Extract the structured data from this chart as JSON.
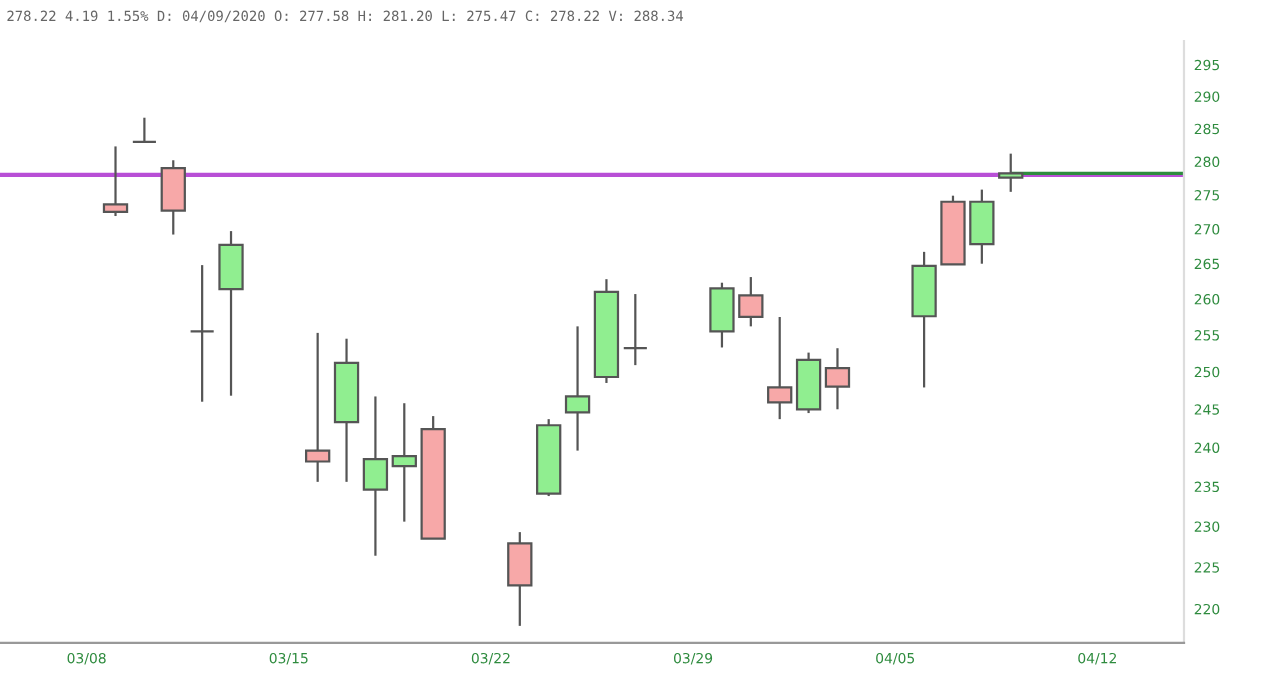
{
  "chart_data": {
    "type": "candlestick",
    "title": "278.22 4.19 1.55% D: 04/09/2020 O: 277.58 H: 281.20 L: 275.47 C: 278.22 V: 288.34",
    "x": [
      "2020-03-09",
      "2020-03-10",
      "2020-03-11",
      "2020-03-12",
      "2020-03-13",
      "2020-03-16",
      "2020-03-17",
      "2020-03-18",
      "2020-03-19",
      "2020-03-20",
      "2020-03-23",
      "2020-03-24",
      "2020-03-25",
      "2020-03-26",
      "2020-03-27",
      "2020-03-30",
      "2020-03-31",
      "2020-04-01",
      "2020-04-02",
      "2020-04-03",
      "2020-04-06",
      "2020-04-07",
      "2020-04-08",
      "2020-04-09"
    ],
    "ohlc": [
      [
        273.6,
        282.3,
        271.9,
        272.5
      ],
      [
        283.0,
        286.7,
        283.0,
        283.0
      ],
      [
        279.0,
        280.2,
        269.2,
        272.7
      ],
      [
        255.5,
        264.8,
        246.0,
        255.5
      ],
      [
        261.4,
        269.7,
        246.8,
        267.7
      ],
      [
        239.6,
        255.3,
        235.6,
        238.2
      ],
      [
        243.3,
        254.5,
        235.6,
        251.2
      ],
      [
        234.6,
        246.7,
        226.4,
        238.5
      ],
      [
        237.6,
        245.8,
        230.6,
        238.9
      ],
      [
        242.4,
        244.1,
        228.5,
        228.5
      ],
      [
        227.9,
        229.3,
        218.0,
        222.8
      ],
      [
        234.1,
        243.7,
        233.8,
        242.9
      ],
      [
        244.6,
        256.2,
        239.6,
        246.7
      ],
      [
        249.3,
        262.8,
        248.5,
        261.0
      ],
      [
        253.2,
        260.7,
        250.9,
        253.2
      ],
      [
        255.5,
        262.3,
        253.3,
        261.5
      ],
      [
        260.5,
        263.1,
        256.2,
        257.5
      ],
      [
        247.9,
        257.5,
        243.7,
        245.9
      ],
      [
        245.0,
        252.6,
        244.5,
        251.6
      ],
      [
        250.5,
        253.2,
        245.0,
        248.0
      ],
      [
        257.6,
        266.7,
        247.9,
        264.7
      ],
      [
        274.0,
        274.9,
        264.9,
        264.9
      ],
      [
        267.8,
        275.8,
        265.0,
        274.0
      ],
      [
        277.58,
        281.2,
        275.47,
        278.22
      ]
    ],
    "colors": [
      "#f7a8a8",
      "#555555",
      "#f7a8a8",
      "#555555",
      "#90ee90",
      "#f7a8a8",
      "#90ee90",
      "#90ee90",
      "#90ee90",
      "#f7a8a8",
      "#f7a8a8",
      "#90ee90",
      "#90ee90",
      "#90ee90",
      "#555555",
      "#90ee90",
      "#f7a8a8",
      "#f7a8a8",
      "#90ee90",
      "#f7a8a8",
      "#90ee90",
      "#f7a8a8",
      "#90ee90",
      "#90ee90"
    ],
    "log": true,
    "xlim": [
      "2020-03-05",
      "2020-04-15"
    ],
    "xticks": [
      {
        "value": "2020-03-08",
        "label": "03/08"
      },
      {
        "value": "2020-03-15",
        "label": "03/15"
      },
      {
        "value": "2020-03-22",
        "label": "03/22"
      },
      {
        "value": "2020-03-29",
        "label": "03/29"
      },
      {
        "value": "2020-04-05",
        "label": "04/05"
      },
      {
        "value": "2020-04-12",
        "label": "04/12"
      }
    ],
    "ylim": [
      216.0,
      298.8
    ],
    "yticks": [
      220,
      225,
      230,
      235,
      240,
      245,
      250,
      255,
      260,
      265,
      270,
      275,
      280,
      285,
      290,
      295
    ],
    "grid": false,
    "ref_lines": [
      {
        "axis": "y",
        "value": 278.0,
        "color": "#b84fd6"
      },
      {
        "axis": "y",
        "value": 278.22,
        "color": "#2e8b3e"
      }
    ]
  }
}
